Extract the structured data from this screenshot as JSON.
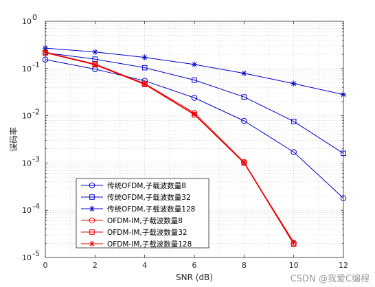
{
  "chart_data": {
    "type": "line",
    "xlabel": "SNR (dB)",
    "ylabel": "误码率",
    "yscale": "log",
    "xlim": [
      0,
      12
    ],
    "ylim": [
      1e-05,
      1
    ],
    "xticks": [
      "0",
      "2",
      "4",
      "6",
      "8",
      "10",
      "12"
    ],
    "yticks": [
      {
        "base": "10",
        "exp": "0"
      },
      {
        "base": "10",
        "exp": "-1"
      },
      {
        "base": "10",
        "exp": "-2"
      },
      {
        "base": "10",
        "exp": "-3"
      },
      {
        "base": "10",
        "exp": "-4"
      },
      {
        "base": "10",
        "exp": "-5"
      }
    ],
    "grid": true,
    "legend_position": "bottom-left",
    "series": [
      {
        "name": "传统OFDM,子载波数量8",
        "color": "#0000cc",
        "marker": "circle",
        "x": [
          0,
          2,
          4,
          6,
          8,
          10,
          12
        ],
        "y": [
          0.155,
          0.097,
          0.055,
          0.024,
          0.0078,
          0.0017,
          0.00018
        ]
      },
      {
        "name": "传统OFDM,子载波数量32",
        "color": "#0000cc",
        "marker": "square",
        "x": [
          0,
          2,
          4,
          6,
          8,
          10,
          12
        ],
        "y": [
          0.215,
          0.158,
          0.104,
          0.057,
          0.025,
          0.0076,
          0.0016
        ]
      },
      {
        "name": "传统OFDM,子载波数量128",
        "color": "#0000cc",
        "marker": "star",
        "x": [
          0,
          2,
          4,
          6,
          8,
          10,
          12
        ],
        "y": [
          0.27,
          0.225,
          0.172,
          0.122,
          0.079,
          0.048,
          0.028
        ]
      },
      {
        "name": "OFDM-IM,子载波数量8",
        "color": "#e60000",
        "marker": "circle",
        "x": [
          0,
          2,
          4,
          6,
          8,
          10
        ],
        "y": [
          0.22,
          0.125,
          0.048,
          0.0115,
          0.00105,
          2e-05
        ]
      },
      {
        "name": "OFDM-IM,子载波数量32",
        "color": "#e60000",
        "marker": "square",
        "x": [
          0,
          2,
          4,
          6,
          8,
          10
        ],
        "y": [
          0.215,
          0.12,
          0.046,
          0.0105,
          0.001,
          1.9e-05
        ]
      },
      {
        "name": "OFDM-IM,子载波数量128",
        "color": "#e60000",
        "marker": "star",
        "x": [
          0,
          2,
          4,
          6,
          8,
          10
        ],
        "y": [
          0.225,
          0.12,
          0.047,
          0.0108,
          0.00102,
          2.1e-05
        ]
      }
    ]
  },
  "watermark": "CSDN @我爱C编程"
}
